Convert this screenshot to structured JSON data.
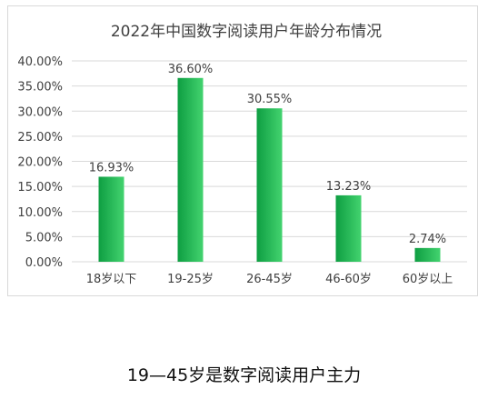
{
  "chart_data": {
    "type": "bar",
    "title": "2022年中国数字阅读用户年龄分布情况",
    "categories": [
      "18岁以下",
      "19-25岁",
      "26-45岁",
      "46-60岁",
      "60岁以上"
    ],
    "values": [
      16.93,
      36.6,
      30.55,
      13.23,
      2.74
    ],
    "value_labels": [
      "16.93%",
      "36.60%",
      "30.55%",
      "13.23%",
      "2.74%"
    ],
    "y_ticks": [
      "0.00%",
      "5.00%",
      "10.00%",
      "15.00%",
      "20.00%",
      "25.00%",
      "30.00%",
      "35.00%",
      "40.00%"
    ],
    "ylim": [
      0,
      40
    ],
    "grid": true,
    "legend": "none",
    "bar_color_light": "#43d36f",
    "bar_color_dark": "#0e9e42",
    "grid_color": "#d9d9d9"
  },
  "caption": "19—45岁是数字阅读用户主力"
}
